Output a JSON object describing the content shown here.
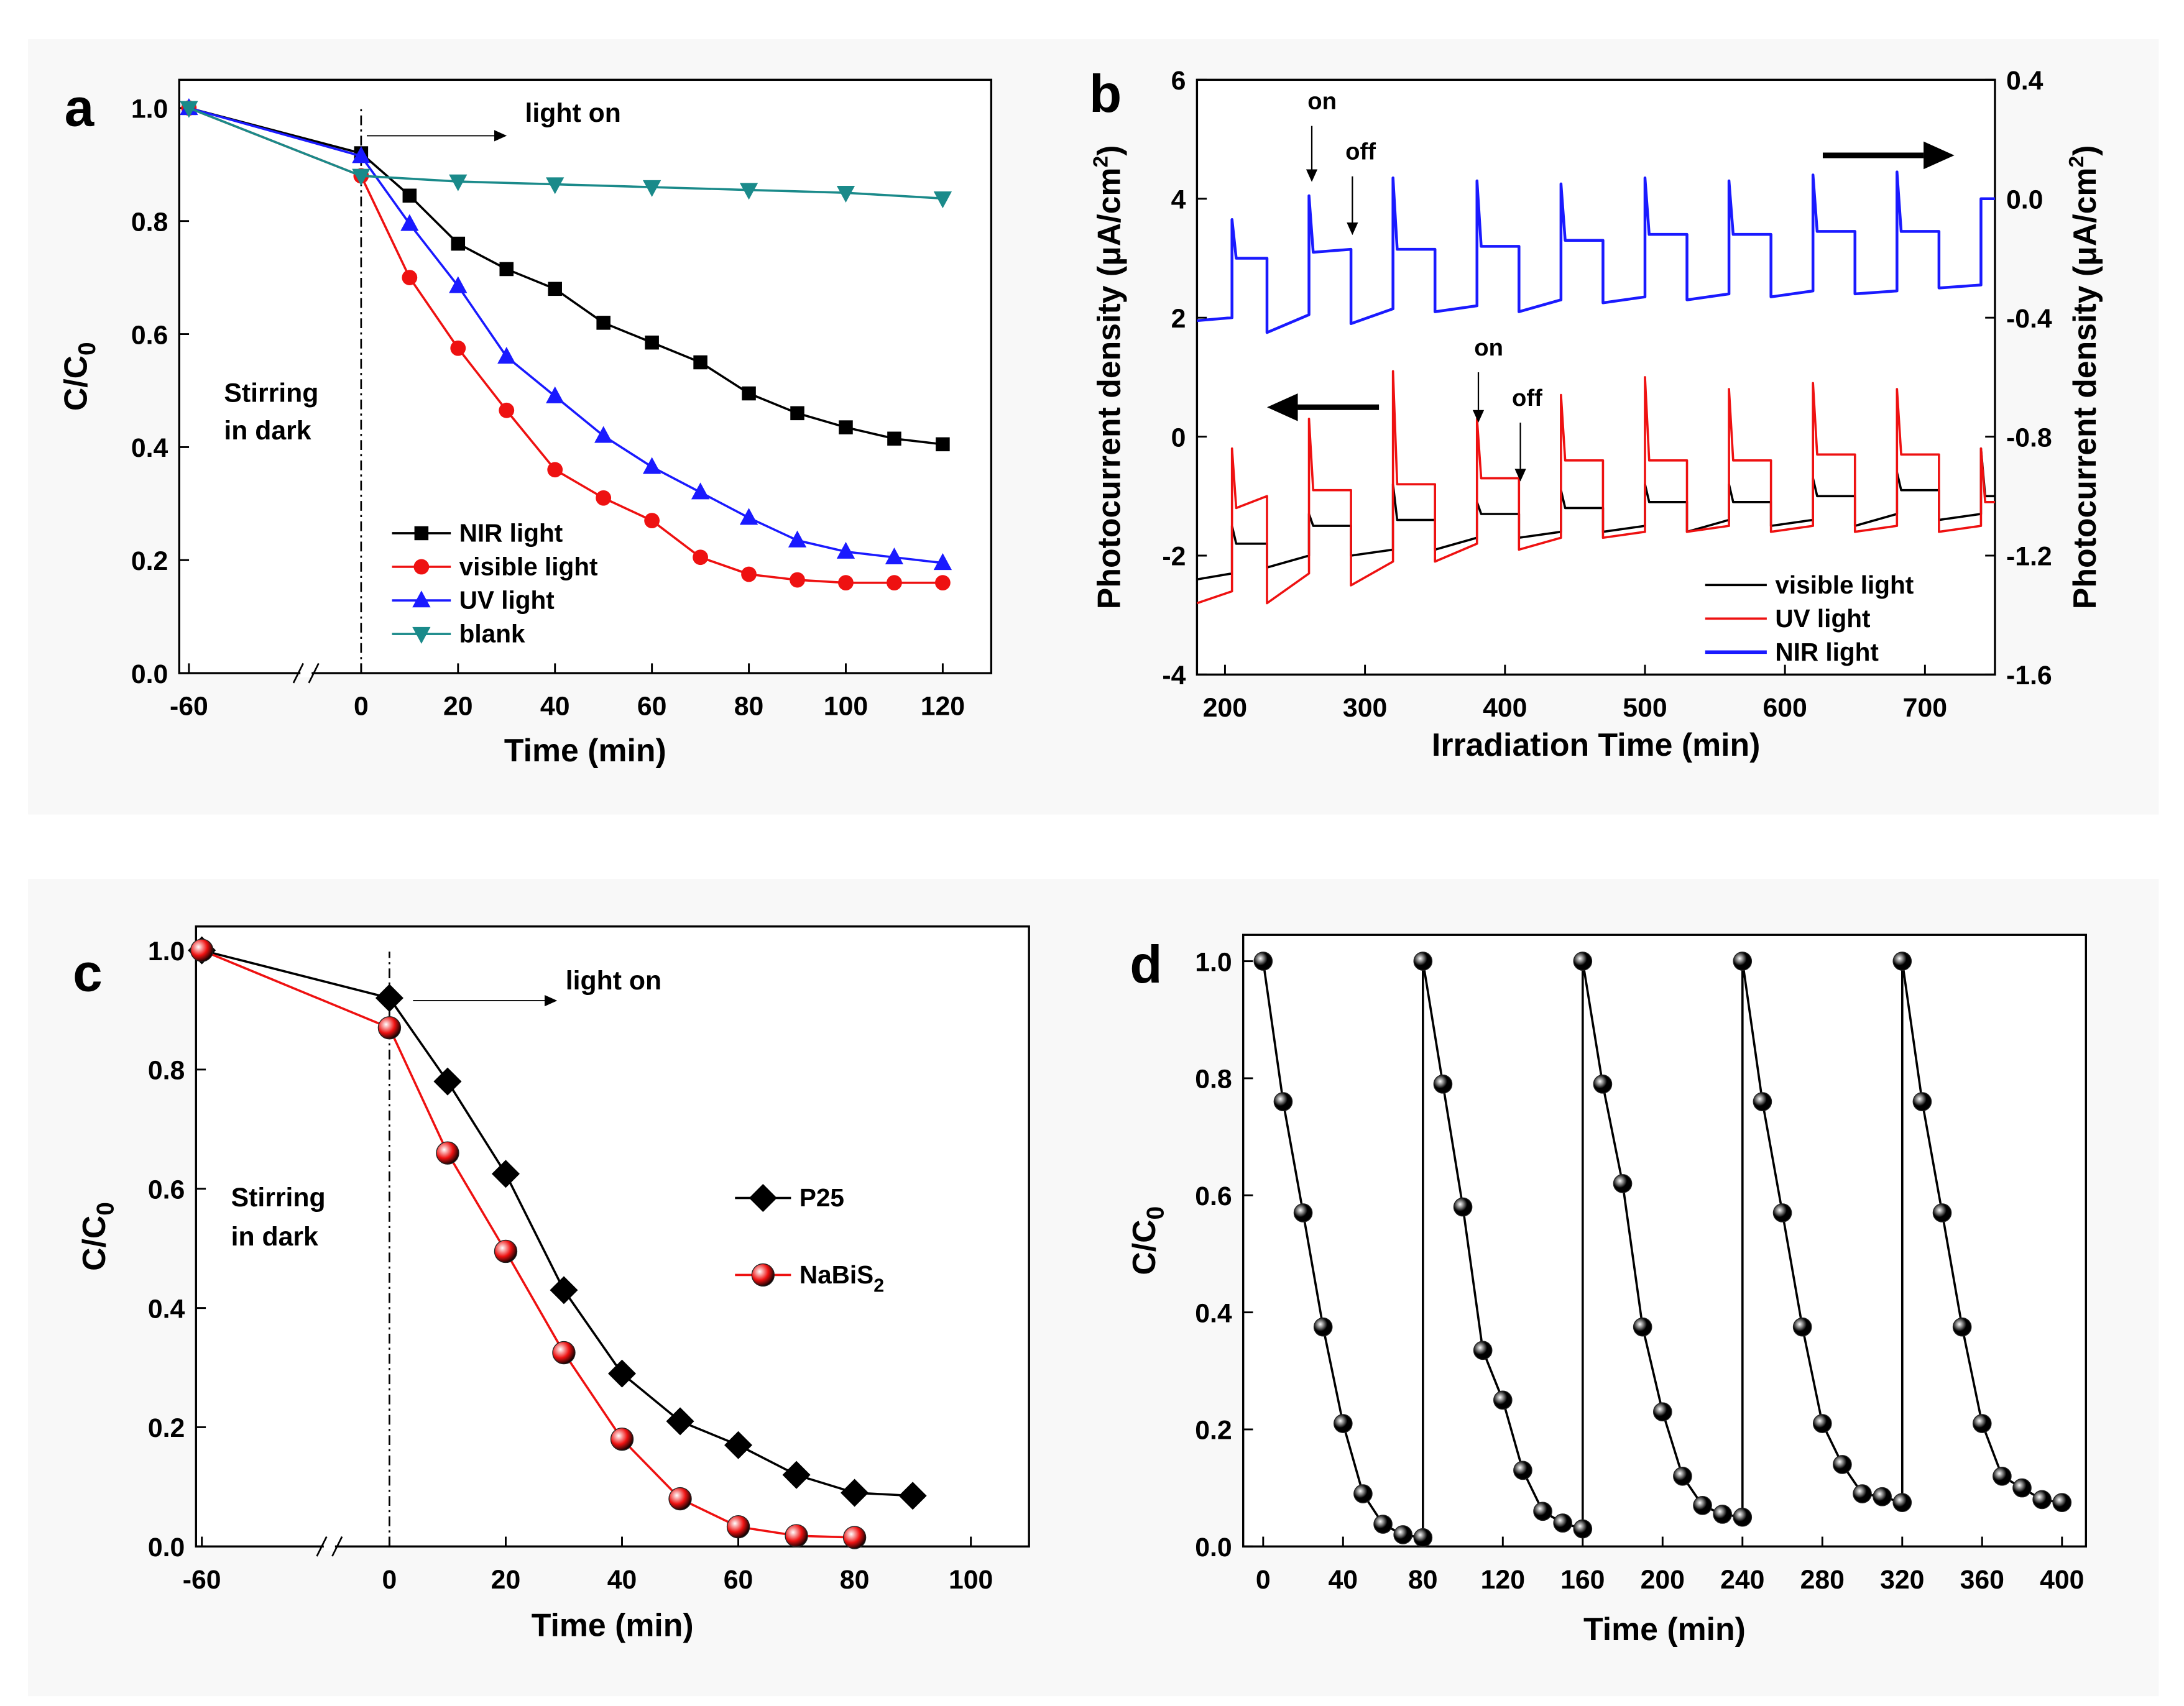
{
  "chart_data": [
    {
      "type": "line",
      "label": "a",
      "xlabel": "Time (min)",
      "ylabel": "C/C0",
      "xlim": [
        -62,
        130
      ],
      "x_break": [
        -60,
        0
      ],
      "xticks": [
        -60,
        0,
        20,
        40,
        60,
        80,
        100,
        120
      ],
      "ylim": [
        0,
        1.05
      ],
      "yticks": [
        {
          "value": 0,
          "label": "0.0"
        },
        0.2,
        0.4,
        0.6,
        0.8,
        {
          "value": 1,
          "label": "1.0"
        }
      ],
      "legend": "lower left",
      "annotations": [
        "light on",
        "Stirring",
        "in dark"
      ],
      "series": [
        {
          "name": "NIR light",
          "color": "#000000",
          "marker": "square",
          "x": [
            -60,
            0,
            10,
            20,
            30,
            40,
            50,
            60,
            70,
            80,
            90,
            100,
            110,
            120
          ],
          "values": [
            1.0,
            0.92,
            0.845,
            0.76,
            0.715,
            0.68,
            0.62,
            0.585,
            0.55,
            0.495,
            0.46,
            0.435,
            0.415,
            0.405
          ]
        },
        {
          "name": "visible light",
          "color": "#ee1111",
          "marker": "circle",
          "x": [
            -60,
            0,
            10,
            20,
            30,
            40,
            50,
            60,
            70,
            80,
            90,
            100,
            110,
            120
          ],
          "values": [
            1.0,
            0.88,
            0.7,
            0.575,
            0.465,
            0.36,
            0.31,
            0.27,
            0.205,
            0.175,
            0.165,
            0.16,
            0.16,
            0.16
          ]
        },
        {
          "name": "UV light",
          "color": "#1a1aff",
          "marker": "triangle-up",
          "x": [
            -60,
            0,
            10,
            20,
            30,
            40,
            50,
            60,
            70,
            80,
            90,
            100,
            110,
            120
          ],
          "values": [
            1.0,
            0.915,
            0.795,
            0.685,
            0.56,
            0.49,
            0.42,
            0.365,
            0.32,
            0.275,
            0.235,
            0.215,
            0.205,
            0.195
          ]
        },
        {
          "name": "blank",
          "color": "#1a8a8a",
          "marker": "triangle-down",
          "x": [
            -60,
            0,
            20,
            40,
            60,
            80,
            100,
            120
          ],
          "values": [
            1.0,
            0.88,
            0.87,
            0.865,
            0.86,
            0.855,
            0.85,
            0.84
          ]
        }
      ]
    },
    {
      "type": "line",
      "label": "b",
      "xlabel": "Irradiation Time (min)",
      "ylabel": "Photocurrent density (μA/cm2)",
      "y2label": "Photocurrent density (μA/cm2)",
      "xlim": [
        180,
        750
      ],
      "xticks": [
        200,
        300,
        400,
        500,
        600,
        700
      ],
      "ylim": [
        -4,
        6
      ],
      "yticks": [
        -4,
        -2,
        0,
        2,
        4,
        6
      ],
      "y2lim": [
        -1.6,
        0.4
      ],
      "y2ticks": [
        -1.6,
        -1.2,
        -0.8,
        -0.4,
        {
          "value": 0,
          "label": "0.0"
        },
        0.4
      ],
      "legend": "lower right",
      "annotations": [
        "on",
        "off",
        "on",
        "off"
      ],
      "x": [
        180,
        205,
        205,
        208,
        230,
        230,
        260,
        260,
        263,
        290,
        290,
        320,
        320,
        323,
        350,
        350,
        380,
        380,
        383,
        410,
        410,
        440,
        440,
        443,
        470,
        470,
        500,
        500,
        503,
        530,
        530,
        560,
        560,
        563,
        590,
        590,
        620,
        620,
        623,
        650,
        650,
        680,
        680,
        683,
        710,
        710,
        740,
        740,
        743,
        750
      ],
      "series": [
        {
          "name": "visible light",
          "color": "#000000",
          "values": [
            -2.4,
            -2.3,
            -1.5,
            -1.8,
            -1.8,
            -2.2,
            -2.0,
            -1.3,
            -1.5,
            -1.5,
            -2.0,
            -1.9,
            -0.8,
            -1.4,
            -1.4,
            -1.9,
            -1.7,
            -1.1,
            -1.3,
            -1.3,
            -1.7,
            -1.6,
            -0.9,
            -1.2,
            -1.2,
            -1.6,
            -1.5,
            -0.8,
            -1.1,
            -1.1,
            -1.6,
            -1.4,
            -0.8,
            -1.1,
            -1.1,
            -1.5,
            -1.4,
            -0.7,
            -1.0,
            -1.0,
            -1.5,
            -1.3,
            -0.6,
            -0.9,
            -0.9,
            -1.4,
            -1.3,
            -0.2,
            -1.0,
            -1.0
          ]
        },
        {
          "name": "UV light",
          "color": "#ee1111",
          "values": [
            -2.8,
            -2.6,
            -0.2,
            -1.2,
            -1.0,
            -2.8,
            -2.3,
            0.3,
            -0.9,
            -0.9,
            -2.5,
            -2.1,
            1.1,
            -0.8,
            -0.8,
            -2.1,
            -1.8,
            0.3,
            -0.7,
            -0.7,
            -1.9,
            -1.7,
            0.7,
            -0.4,
            -0.4,
            -1.7,
            -1.6,
            1.0,
            -0.4,
            -0.4,
            -1.6,
            -1.5,
            0.8,
            -0.4,
            -0.4,
            -1.6,
            -1.5,
            0.9,
            -0.3,
            -0.3,
            -1.6,
            -1.5,
            0.8,
            -0.3,
            -0.3,
            -1.6,
            -1.5,
            -0.2,
            -1.1,
            -1.1
          ]
        },
        {
          "name": "NIR light",
          "color": "#1a1aff",
          "axis": "y2",
          "values": [
            -0.41,
            -0.4,
            -0.07,
            -0.2,
            -0.2,
            -0.45,
            -0.39,
            0.01,
            -0.18,
            -0.17,
            -0.42,
            -0.37,
            0.07,
            -0.17,
            -0.17,
            -0.38,
            -0.36,
            0.06,
            -0.16,
            -0.16,
            -0.38,
            -0.34,
            0.05,
            -0.14,
            -0.14,
            -0.35,
            -0.33,
            0.07,
            -0.12,
            -0.12,
            -0.34,
            -0.32,
            0.06,
            -0.12,
            -0.12,
            -0.33,
            -0.31,
            0.08,
            -0.11,
            -0.11,
            -0.32,
            -0.31,
            0.09,
            -0.11,
            -0.11,
            -0.3,
            -0.29,
            0.0,
            0.0,
            0.0
          ]
        }
      ]
    },
    {
      "type": "line",
      "label": "c",
      "xlabel": "Time (min)",
      "ylabel": "C/C0",
      "xlim": [
        -61,
        110
      ],
      "x_break": [
        -60,
        0
      ],
      "xticks": [
        -60,
        0,
        20,
        40,
        60,
        80,
        100
      ],
      "ylim": [
        0,
        1.04
      ],
      "yticks": [
        {
          "value": 0,
          "label": "0.0"
        },
        0.2,
        0.4,
        0.6,
        0.8,
        {
          "value": 1,
          "label": "1.0"
        }
      ],
      "legend": "center right",
      "annotations": [
        "light on",
        "Stirring",
        "in dark"
      ],
      "series": [
        {
          "name": "P25",
          "color": "#000000",
          "marker": "diamond",
          "x": [
            -60,
            0,
            10,
            20,
            30,
            40,
            50,
            60,
            70,
            80,
            90
          ],
          "values": [
            1.0,
            0.92,
            0.78,
            0.625,
            0.43,
            0.29,
            0.21,
            0.17,
            0.12,
            0.09,
            0.085
          ]
        },
        {
          "name": "NaBiS2",
          "color": "#ee1111",
          "marker": "sphere",
          "x": [
            -60,
            0,
            10,
            20,
            30,
            40,
            50,
            60,
            70,
            80
          ],
          "values": [
            1.0,
            0.87,
            0.66,
            0.495,
            0.325,
            0.18,
            0.08,
            0.033,
            0.018,
            0.015
          ]
        }
      ]
    },
    {
      "type": "line",
      "label": "d",
      "xlabel": "Time (min)",
      "ylabel": "C/C0",
      "xlim": [
        -10,
        412
      ],
      "xticks": [
        0,
        40,
        80,
        120,
        160,
        200,
        240,
        280,
        320,
        360,
        400
      ],
      "ylim": [
        0,
        1.045
      ],
      "yticks": [
        {
          "value": 0,
          "label": "0.0"
        },
        0.2,
        0.4,
        0.6,
        0.8,
        {
          "value": 1,
          "label": "1.0"
        }
      ],
      "color": "#000000",
      "marker": "sphere",
      "x": [
        0,
        10,
        20,
        30,
        40,
        50,
        60,
        70,
        80,
        80,
        90,
        100,
        110,
        120,
        130,
        140,
        150,
        160,
        160,
        170,
        180,
        190,
        200,
        210,
        220,
        230,
        240,
        240,
        250,
        260,
        270,
        280,
        290,
        300,
        310,
        320,
        320,
        330,
        340,
        350,
        360,
        370,
        380,
        390,
        400
      ],
      "values": [
        1.0,
        0.76,
        0.57,
        0.375,
        0.21,
        0.09,
        0.038,
        0.02,
        0.015,
        1.0,
        0.79,
        0.58,
        0.335,
        0.25,
        0.13,
        0.06,
        0.04,
        0.03,
        1.0,
        0.79,
        0.62,
        0.375,
        0.23,
        0.12,
        0.07,
        0.055,
        0.05,
        1.0,
        0.76,
        0.57,
        0.375,
        0.21,
        0.14,
        0.09,
        0.085,
        0.075,
        1.0,
        0.76,
        0.57,
        0.375,
        0.21,
        0.12,
        0.1,
        0.08,
        0.075
      ]
    }
  ]
}
